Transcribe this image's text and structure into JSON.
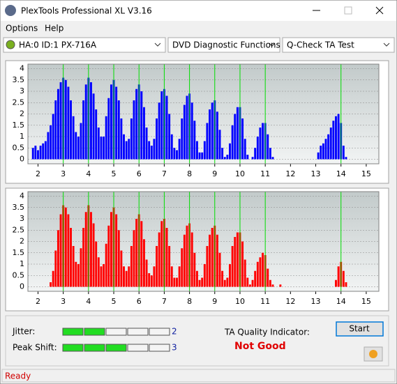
{
  "window": {
    "title": "PlexTools Professional XL V3.16"
  },
  "menu": [
    "Options",
    "Help"
  ],
  "toolbar": {
    "drive": "HA:0 ID:1  PX-716A",
    "function": "DVD Diagnostic Functions",
    "test": "Q-Check TA Test"
  },
  "chart_data": [
    {
      "type": "bar",
      "color": "#0000ff",
      "x": [
        1.8,
        1.9,
        2.0,
        2.1,
        2.2,
        2.3,
        2.4,
        2.5,
        2.6,
        2.7,
        2.8,
        2.9,
        3.0,
        3.1,
        3.2,
        3.3,
        3.4,
        3.5,
        3.6,
        3.7,
        3.8,
        3.9,
        4.0,
        4.1,
        4.2,
        4.3,
        4.4,
        4.5,
        4.6,
        4.7,
        4.8,
        4.9,
        5.0,
        5.1,
        5.2,
        5.3,
        5.4,
        5.5,
        5.6,
        5.7,
        5.8,
        5.9,
        6.0,
        6.1,
        6.2,
        6.3,
        6.4,
        6.5,
        6.6,
        6.7,
        6.8,
        6.9,
        7.0,
        7.1,
        7.2,
        7.3,
        7.4,
        7.5,
        7.6,
        7.7,
        7.8,
        7.9,
        8.0,
        8.1,
        8.2,
        8.3,
        8.4,
        8.5,
        8.6,
        8.7,
        8.8,
        8.9,
        9.0,
        9.1,
        9.2,
        9.3,
        9.4,
        9.5,
        9.6,
        9.7,
        9.8,
        9.9,
        10.0,
        10.1,
        10.2,
        10.3,
        10.4,
        10.5,
        10.6,
        10.7,
        10.8,
        10.9,
        11.0,
        11.1,
        11.2,
        11.3,
        11.4,
        11.5,
        11.6,
        11.7,
        11.8,
        11.9,
        12.0,
        12.1,
        12.2,
        12.3,
        12.4,
        12.5,
        12.6,
        12.7,
        12.8,
        12.9,
        13.0,
        13.1,
        13.2,
        13.3,
        13.4,
        13.5,
        13.6,
        13.7,
        13.8,
        13.9,
        14.0,
        14.1,
        14.2,
        14.3,
        14.4,
        14.5
      ],
      "values": [
        0.5,
        0.6,
        0.4,
        0.6,
        0.7,
        0.8,
        1.2,
        1.5,
        2.0,
        2.6,
        3.1,
        3.4,
        3.6,
        3.5,
        3.2,
        2.6,
        1.9,
        1.2,
        1.0,
        1.6,
        2.6,
        3.3,
        3.6,
        3.4,
        2.9,
        2.2,
        1.4,
        1.0,
        1.0,
        1.9,
        2.7,
        3.3,
        3.5,
        3.2,
        2.6,
        1.8,
        1.1,
        0.8,
        0.9,
        1.8,
        2.6,
        3.1,
        3.3,
        3.0,
        2.3,
        1.4,
        0.8,
        0.6,
        0.9,
        1.8,
        2.5,
        3.0,
        3.1,
        2.8,
        2.0,
        1.1,
        0.5,
        0.4,
        0.9,
        1.8,
        2.4,
        2.8,
        2.9,
        2.5,
        1.7,
        0.8,
        0.3,
        0.3,
        0.8,
        1.6,
        2.2,
        2.5,
        2.6,
        2.1,
        1.3,
        0.5,
        0.1,
        0.2,
        0.7,
        1.5,
        2.0,
        2.3,
        2.3,
        1.8,
        0.9,
        0.2,
        0,
        0.1,
        0.5,
        1.0,
        1.4,
        1.6,
        1.6,
        1.1,
        0.5,
        0.1,
        0,
        0,
        0,
        0,
        0,
        0,
        0,
        0,
        0,
        0,
        0,
        0,
        0,
        0,
        0,
        0,
        0,
        0.3,
        0.6,
        0.7,
        0.9,
        1.1,
        1.4,
        1.7,
        1.9,
        2.0,
        1.6,
        0.6,
        0.1,
        0,
        0,
        0
      ],
      "xlim": [
        1.6,
        15.5
      ],
      "ylim": [
        -0.2,
        4.2
      ],
      "xticks": [
        2,
        3,
        4,
        5,
        6,
        7,
        8,
        9,
        10,
        11,
        12,
        13,
        14,
        15
      ],
      "yticks": [
        0,
        0.5,
        1,
        1.5,
        2,
        2.5,
        3,
        3.5,
        4
      ],
      "grid": true,
      "vlines": [
        3,
        4,
        5,
        6,
        7,
        8,
        9,
        10,
        11,
        14
      ],
      "vline_color": "#00dd00"
    },
    {
      "type": "bar",
      "color": "#ff0000",
      "x": [
        1.8,
        1.9,
        2.0,
        2.1,
        2.2,
        2.3,
        2.4,
        2.5,
        2.6,
        2.7,
        2.8,
        2.9,
        3.0,
        3.1,
        3.2,
        3.3,
        3.4,
        3.5,
        3.6,
        3.7,
        3.8,
        3.9,
        4.0,
        4.1,
        4.2,
        4.3,
        4.4,
        4.5,
        4.6,
        4.7,
        4.8,
        4.9,
        5.0,
        5.1,
        5.2,
        5.3,
        5.4,
        5.5,
        5.6,
        5.7,
        5.8,
        5.9,
        6.0,
        6.1,
        6.2,
        6.3,
        6.4,
        6.5,
        6.6,
        6.7,
        6.8,
        6.9,
        7.0,
        7.1,
        7.2,
        7.3,
        7.4,
        7.5,
        7.6,
        7.7,
        7.8,
        7.9,
        8.0,
        8.1,
        8.2,
        8.3,
        8.4,
        8.5,
        8.6,
        8.7,
        8.8,
        8.9,
        9.0,
        9.1,
        9.2,
        9.3,
        9.4,
        9.5,
        9.6,
        9.7,
        9.8,
        9.9,
        10.0,
        10.1,
        10.2,
        10.3,
        10.4,
        10.5,
        10.6,
        10.7,
        10.8,
        10.9,
        11.0,
        11.1,
        11.2,
        11.3,
        11.4,
        11.5,
        11.6,
        11.7,
        11.8,
        11.9,
        12.0,
        12.1,
        12.2,
        12.3,
        12.4,
        12.5,
        12.6,
        12.7,
        12.8,
        12.9,
        13.0,
        13.1,
        13.2,
        13.3,
        13.4,
        13.5,
        13.6,
        13.7,
        13.8,
        13.9,
        14.0,
        14.1,
        14.2,
        14.3,
        14.4,
        14.5
      ],
      "values": [
        0,
        0,
        0,
        0,
        0,
        0,
        0,
        0.2,
        0.7,
        1.6,
        2.5,
        3.2,
        3.6,
        3.5,
        3.2,
        2.6,
        1.8,
        1.1,
        1.0,
        1.7,
        2.6,
        3.3,
        3.6,
        3.3,
        2.8,
        2.0,
        1.3,
        0.9,
        1.0,
        1.9,
        2.7,
        3.3,
        3.5,
        3.2,
        2.5,
        1.6,
        0.9,
        0.7,
        0.9,
        1.8,
        2.5,
        3.0,
        3.2,
        2.9,
        2.1,
        1.2,
        0.6,
        0.5,
        0.9,
        1.8,
        2.4,
        2.9,
        3.0,
        2.6,
        1.8,
        0.9,
        0.4,
        0.4,
        0.9,
        1.7,
        2.3,
        2.7,
        2.8,
        2.4,
        1.5,
        0.7,
        0.3,
        0.4,
        1.0,
        1.8,
        2.3,
        2.6,
        2.7,
        2.3,
        1.5,
        0.7,
        0.3,
        0.4,
        1.0,
        1.8,
        2.2,
        2.4,
        2.4,
        2.0,
        1.2,
        0.4,
        0.1,
        0.3,
        0.7,
        1.1,
        1.3,
        1.5,
        1.4,
        0.8,
        0.3,
        0.1,
        0,
        0,
        0.1,
        0,
        0,
        0,
        0,
        0,
        0,
        0,
        0,
        0,
        0,
        0,
        0,
        0,
        0,
        0,
        0,
        0,
        0,
        0,
        0,
        0,
        0.3,
        0.9,
        1.1,
        0.7,
        0.2,
        0,
        0,
        0
      ],
      "xlim": [
        1.6,
        15.5
      ],
      "ylim": [
        -0.2,
        4.2
      ],
      "xticks": [
        2,
        3,
        4,
        5,
        6,
        7,
        8,
        9,
        10,
        11,
        12,
        13,
        14,
        15
      ],
      "yticks": [
        0,
        0.5,
        1,
        1.5,
        2,
        2.5,
        3,
        3.5,
        4
      ],
      "grid": true,
      "vlines": [
        3,
        4,
        5,
        6,
        7,
        8,
        9,
        10,
        11,
        14
      ],
      "vline_color": "#00dd00"
    }
  ],
  "results": {
    "jitter_label": "Jitter:",
    "jitter": 2,
    "peak_shift_label": "Peak Shift:",
    "peak_shift": 3,
    "ta_label": "TA Quality Indicator:",
    "ta_result": "Not Good"
  },
  "buttons": {
    "start": "Start"
  },
  "status": "Ready"
}
